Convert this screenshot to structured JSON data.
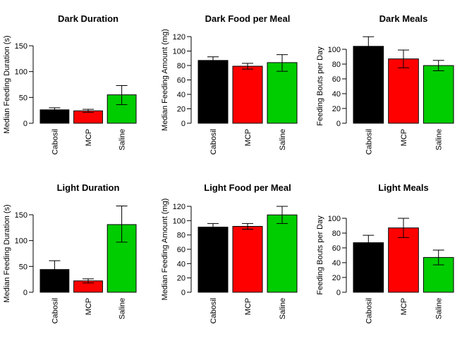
{
  "colors": {
    "Cabosil": "#000000",
    "MCP": "#ff0000",
    "Saline": "#00cd00"
  },
  "chart_data": [
    {
      "type": "bar",
      "title": "Dark Duration",
      "ylabel": "Median Feeding Duration (s)",
      "categories": [
        "Cabosil",
        "MCP",
        "Saline"
      ],
      "values": [
        26,
        24,
        55
      ],
      "errors": [
        [
          22,
          30
        ],
        [
          21,
          27
        ],
        [
          36,
          73
        ]
      ],
      "ylim": [
        0,
        150
      ],
      "yticks": [
        "0",
        "50",
        "100",
        "150"
      ]
    },
    {
      "type": "bar",
      "title": "Dark Food per Meal",
      "ylabel": "Median Feeding Amount (mg)",
      "categories": [
        "Cabosil",
        "MCP",
        "Saline"
      ],
      "values": [
        87,
        79,
        84
      ],
      "errors": [
        [
          81,
          92
        ],
        [
          75,
          83
        ],
        [
          72,
          95
        ]
      ],
      "ylim": [
        0,
        120
      ],
      "yticks": [
        "0",
        "20",
        "40",
        "60",
        "80",
        "100",
        "120"
      ]
    },
    {
      "type": "bar",
      "title": "Dark Meals",
      "ylabel": "Feeding Bouts per Day",
      "categories": [
        "Cabosil",
        "MCP",
        "Saline"
      ],
      "values": [
        104,
        87,
        78
      ],
      "errors": [
        [
          91,
          117
        ],
        [
          75,
          99
        ],
        [
          71,
          85
        ]
      ],
      "ylim": [
        0,
        100
      ],
      "yticks": [
        "0",
        "20",
        "40",
        "60",
        "80",
        "100"
      ]
    },
    {
      "type": "bar",
      "title": "Light Duration",
      "ylabel": "Median Feeding Duration (s)",
      "categories": [
        "Cabosil",
        "MCP",
        "Saline"
      ],
      "values": [
        44,
        22,
        131
      ],
      "errors": [
        [
          28,
          61
        ],
        [
          18,
          26
        ],
        [
          97,
          167
        ]
      ],
      "ylim": [
        0,
        150
      ],
      "yticks": [
        "0",
        "50",
        "100",
        "150"
      ]
    },
    {
      "type": "bar",
      "title": "Light Food per Meal",
      "ylabel": "Median Feeding Amount (mg)",
      "categories": [
        "Cabosil",
        "MCP",
        "Saline"
      ],
      "values": [
        91,
        92,
        108
      ],
      "errors": [
        [
          86,
          96
        ],
        [
          88,
          96
        ],
        [
          96,
          120
        ]
      ],
      "ylim": [
        0,
        120
      ],
      "yticks": [
        "0",
        "20",
        "40",
        "60",
        "80",
        "100",
        "120"
      ]
    },
    {
      "type": "bar",
      "title": "Light Meals",
      "ylabel": "Feeding Bouts per Day",
      "categories": [
        "Cabosil",
        "MCP",
        "Saline"
      ],
      "values": [
        67,
        87,
        47
      ],
      "errors": [
        [
          57,
          77
        ],
        [
          74,
          100
        ],
        [
          37,
          57
        ]
      ],
      "ylim": [
        0,
        100
      ],
      "yticks": [
        "0",
        "20",
        "40",
        "60",
        "80",
        "100"
      ]
    }
  ]
}
